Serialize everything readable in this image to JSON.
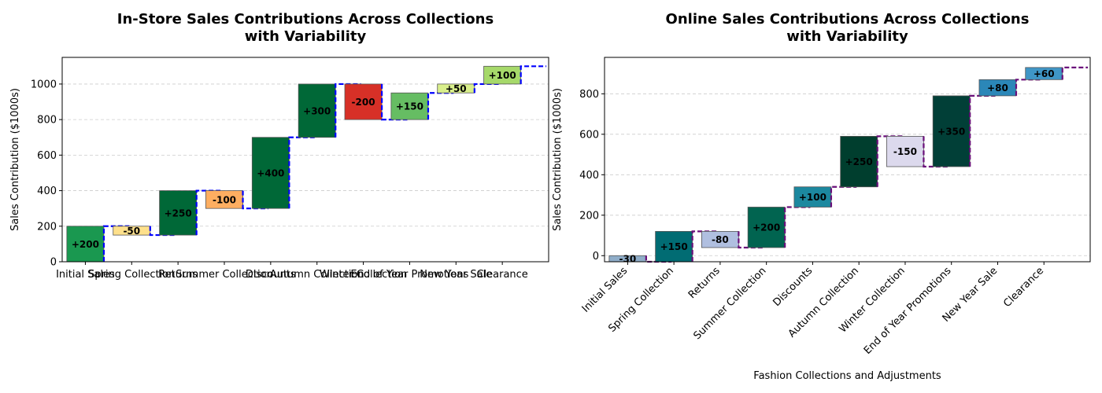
{
  "chart_data": [
    {
      "type": "bar",
      "subtype": "waterfall",
      "title": "In-Store Sales Contributions Across Collections\nwith Variability",
      "ylabel": "Sales Contribution ($1000s)",
      "xlabel": "",
      "categories": [
        "Initial Sales",
        "Spring Collection",
        "Returns",
        "Summer Collection",
        "Discounts",
        "Autumn Collection",
        "Winter Collection",
        "End of Year Promotions",
        "New Year Sale",
        "Clearance"
      ],
      "values": [
        200,
        -50,
        250,
        -100,
        400,
        300,
        -200,
        150,
        50,
        100
      ],
      "bar_labels": [
        "+200",
        "-50",
        "+250",
        "-100",
        "+400",
        "+300",
        "-200",
        "+150",
        "+50",
        "+100"
      ],
      "bar_colors": [
        "#1a9850",
        "#fee08b",
        "#006837",
        "#fdae61",
        "#006837",
        "#006837",
        "#d73027",
        "#66bd63",
        "#d9ef8b",
        "#a6d96a"
      ],
      "connector_color": "#0000ff",
      "ylim": [
        0,
        1150
      ],
      "yticks": [
        0,
        200,
        400,
        600,
        800,
        1000
      ],
      "xtick_rotation": 0,
      "grid": "y-dashed"
    },
    {
      "type": "bar",
      "subtype": "waterfall",
      "title": "Online Sales Contributions Across Collections\nwith Variability",
      "ylabel": "Sales Contribution ($1000s)",
      "xlabel": "Fashion Collections and Adjustments",
      "categories": [
        "Initial Sales",
        "Spring Collection",
        "Returns",
        "Summer Collection",
        "Discounts",
        "Autumn Collection",
        "Winter Collection",
        "End of Year Promotions",
        "New Year Sale",
        "Clearance"
      ],
      "values": [
        -30,
        150,
        -80,
        200,
        100,
        250,
        -150,
        350,
        80,
        60
      ],
      "bar_labels": [
        "-30",
        "+150",
        "-80",
        "+200",
        "+100",
        "+250",
        "-150",
        "+350",
        "+80",
        "+60"
      ],
      "bar_colors": [
        "#8fadc9",
        "#016c73",
        "#b0bfe0",
        "#016450",
        "#1c889f",
        "#003e2e",
        "#dcd9ed",
        "#013f37",
        "#2b87b8",
        "#3f96c6"
      ],
      "connector_color": "#6a0f7a",
      "ylim": [
        -30,
        980
      ],
      "yticks": [
        0,
        200,
        400,
        600,
        800
      ],
      "xtick_rotation": 45,
      "grid": "y-dashed"
    }
  ]
}
